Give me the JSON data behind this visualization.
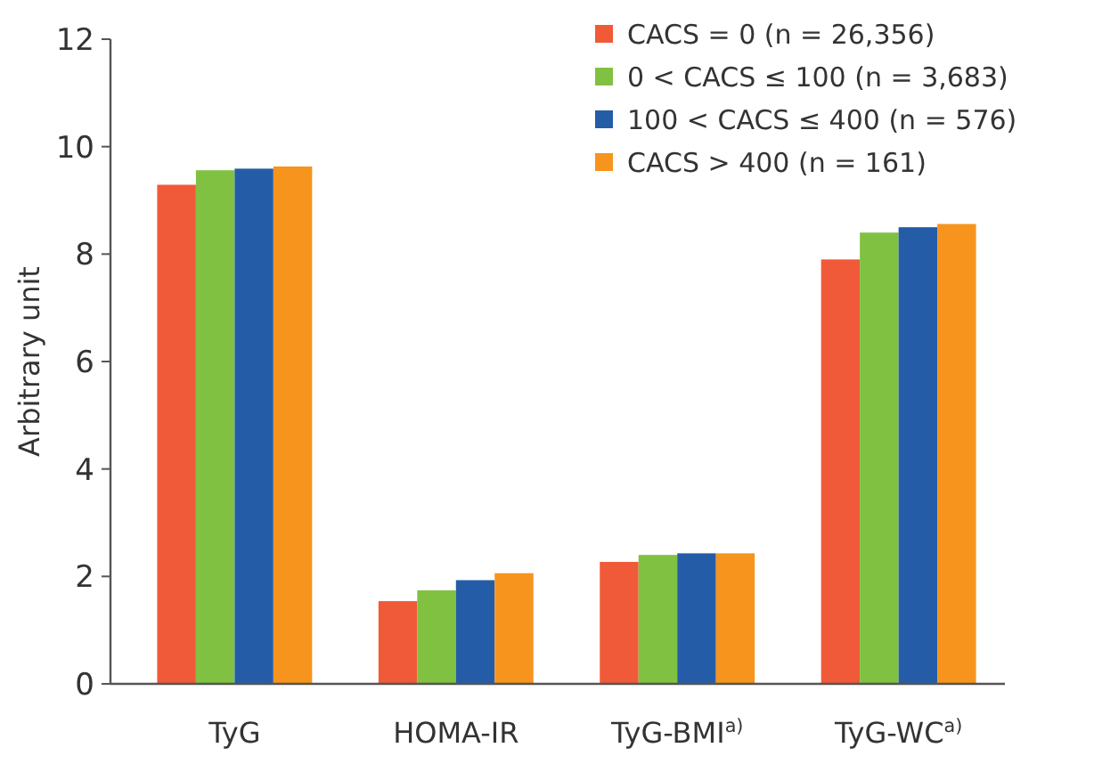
{
  "chart_data": {
    "type": "bar",
    "ylabel": "Arbitrary unit",
    "categories": [
      "TyG",
      "HOMA-IR",
      "TyG-BMI$^{a)}$",
      "TyG-WC$^{a)}$"
    ],
    "series": [
      {
        "name": "CACS = 0 (n = 26,356)",
        "color": "#f05a38",
        "values": [
          9.29,
          1.54,
          2.27,
          7.9
        ]
      },
      {
        "name": "0 < CACS ≤ 100 (n = 3,683)",
        "color": "#80c141",
        "values": [
          9.56,
          1.74,
          2.4,
          8.4
        ]
      },
      {
        "name": "100 < CACS ≤ 400 (n = 576)",
        "color": "#255ca8",
        "values": [
          9.59,
          1.93,
          2.43,
          8.5
        ]
      },
      {
        "name": "CACS > 400 (n = 161)",
        "color": "#f7941d",
        "values": [
          9.63,
          2.06,
          2.43,
          8.56
        ]
      }
    ],
    "ylim": [
      0,
      12
    ],
    "yticks": [
      0,
      2,
      4,
      6,
      8,
      10,
      12
    ],
    "legend": "top right",
    "grid": false
  }
}
